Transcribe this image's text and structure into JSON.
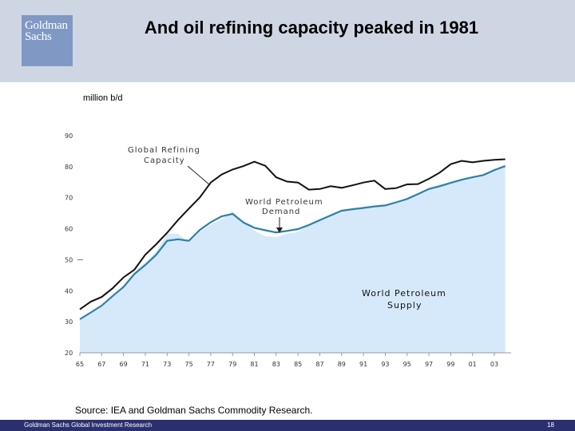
{
  "header": {
    "logo_line1": "Goldman",
    "logo_line2": "Sachs",
    "title": "And oil refining capacity peaked in 1981"
  },
  "source": "Source: IEA and Goldman Sachs Commodity Research.",
  "footer": {
    "left": "Goldman Sachs Global Investment Research",
    "page": "18"
  },
  "colors": {
    "header_bg": "#cfd6e3",
    "logo_bg": "#7f98c4",
    "footer_bg": "#2c2f6e",
    "capacity": "#111111",
    "demand": "#2f7fa8",
    "supply_fill": "#d6e9fa"
  },
  "chart_data": {
    "type": "line",
    "ylabel": "million b/d",
    "ylim": [
      20,
      90
    ],
    "xlim": [
      1965,
      2004
    ],
    "y_ticks": [
      "20",
      "30",
      "40",
      "50",
      "60",
      "70",
      "80",
      "90"
    ],
    "x_ticks": [
      "65",
      "67",
      "69",
      "71",
      "73",
      "75",
      "77",
      "79",
      "81",
      "83",
      "85",
      "87",
      "89",
      "91",
      "93",
      "95",
      "97",
      "99",
      "01",
      "03"
    ],
    "x": [
      1965,
      1966,
      1967,
      1968,
      1969,
      1970,
      1971,
      1972,
      1973,
      1974,
      1975,
      1976,
      1977,
      1978,
      1979,
      1980,
      1981,
      1982,
      1983,
      1984,
      1985,
      1986,
      1987,
      1988,
      1989,
      1990,
      1991,
      1992,
      1993,
      1994,
      1995,
      1996,
      1997,
      1998,
      1999,
      2000,
      2001,
      2002,
      2003,
      2004
    ],
    "series": [
      {
        "name": "Global Refining Capacity",
        "style": "line",
        "values": [
          34,
          36.5,
          38,
          40.8,
          44.3,
          46.8,
          51.6,
          55,
          58.7,
          62.8,
          66.5,
          70.1,
          74.9,
          77.5,
          79.1,
          80.2,
          81.6,
          80.3,
          76.6,
          75.2,
          74.9,
          72.6,
          72.8,
          73.7,
          73.2,
          74,
          74.9,
          75.5,
          72.8,
          73.1,
          74.3,
          74.4,
          76.1,
          78.1,
          80.8,
          81.9,
          81.4,
          81.9,
          82.2,
          82.4
        ]
      },
      {
        "name": "World Petroleum Demand",
        "style": "line",
        "values": [
          30.8,
          33,
          35.2,
          38.3,
          41.2,
          45.4,
          48.3,
          51.6,
          56.1,
          56.6,
          56.1,
          59.6,
          62.1,
          64,
          64.8,
          62,
          60.3,
          59.5,
          58.8,
          59.3,
          59.9,
          61.2,
          62.8,
          64.3,
          65.8,
          66.3,
          66.7,
          67.2,
          67.5,
          68.5,
          69.6,
          71.2,
          72.8,
          73.7,
          74.8,
          75.8,
          76.6,
          77.3,
          78.9,
          80.2
        ]
      },
      {
        "name": "World Petroleum Supply",
        "style": "area",
        "values": [
          31,
          33.2,
          35.5,
          38.6,
          41.6,
          46,
          49,
          52.6,
          58.4,
          58.4,
          55.6,
          59,
          61.4,
          63,
          65.6,
          62.3,
          59.4,
          57.6,
          57.3,
          58.4,
          59,
          61.3,
          63,
          64.6,
          65.9,
          66.6,
          66.7,
          67.2,
          67.4,
          68.6,
          69.6,
          71.1,
          73.2,
          74.4,
          74.9,
          76.1,
          76.6,
          77,
          79,
          81
        ]
      }
    ],
    "annotations": [
      {
        "text_lines": [
          "Global Refining",
          "Capacity"
        ]
      },
      {
        "text_lines": [
          "World Petroleum",
          "Demand"
        ]
      },
      {
        "text_lines": [
          "World Petroleum",
          "Supply"
        ]
      }
    ],
    "grid": false,
    "legend": "none"
  }
}
